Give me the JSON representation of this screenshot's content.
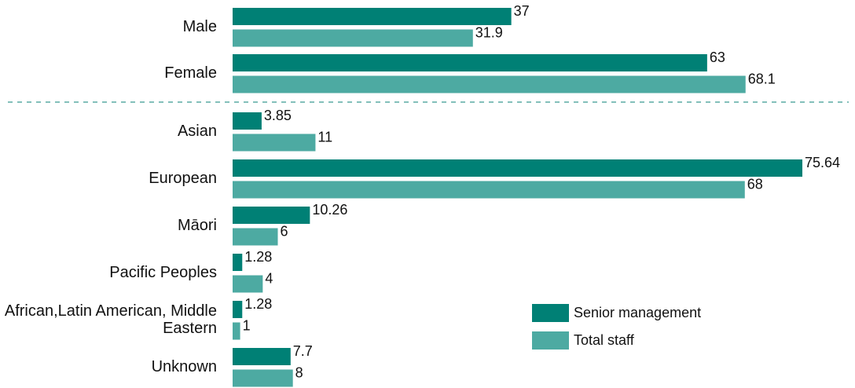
{
  "chart_data": {
    "type": "bar",
    "orientation": "horizontal",
    "categories": [
      "Male",
      "Female",
      "Asian",
      "European",
      "Māori",
      "Pacific Peoples",
      "African,Latin American, Middle Eastern",
      "Unknown"
    ],
    "series": [
      {
        "name": "Senior management",
        "color": "#008075",
        "values": [
          37,
          63,
          3.85,
          75.64,
          10.26,
          1.28,
          1.28,
          7.7
        ]
      },
      {
        "name": "Total staff",
        "color": "#4daaa2",
        "values": [
          31.9,
          68.1,
          11,
          68,
          6,
          4,
          1,
          8
        ]
      }
    ],
    "legend": "lower right"
  }
}
